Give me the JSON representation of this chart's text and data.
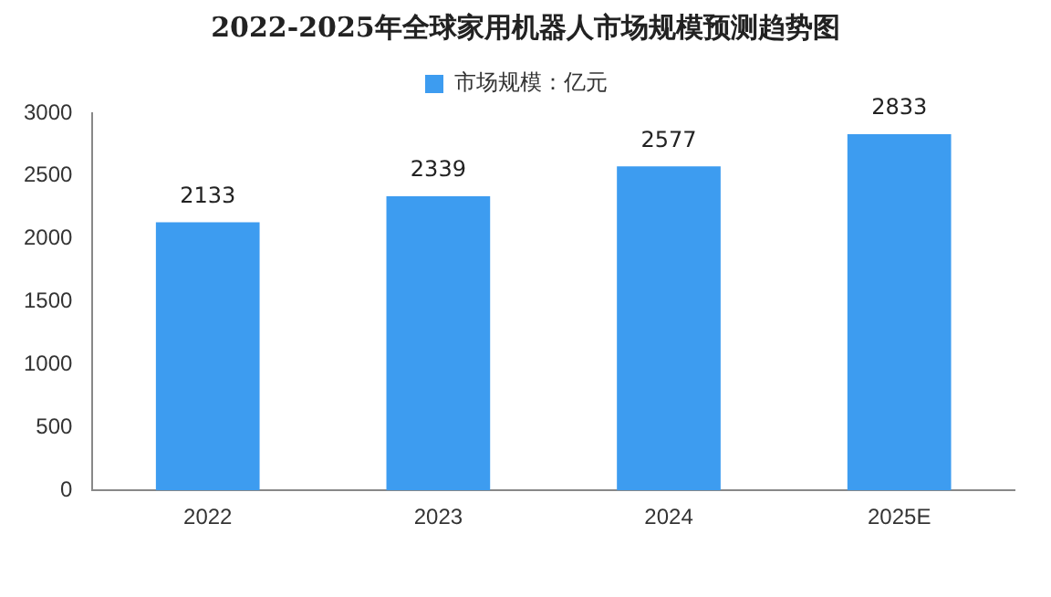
{
  "chart_data": {
    "type": "bar",
    "title": "2022-2025年全球家用机器人市场规模预测趋势图",
    "categories": [
      "2022",
      "2023",
      "2024",
      "2025E"
    ],
    "series": [
      {
        "name": "市场规模：亿元",
        "color": "#3d9cf0",
        "values": [
          2133,
          2339,
          2577,
          2833
        ]
      }
    ],
    "ylim": [
      0,
      3000
    ],
    "yticks": [
      0,
      500,
      1000,
      1500,
      2000,
      2500,
      3000
    ],
    "grid": false,
    "legend": "top",
    "data_labels": true
  }
}
